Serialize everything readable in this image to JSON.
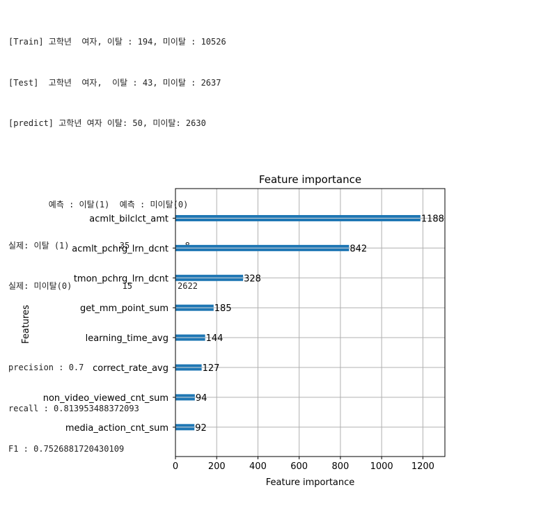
{
  "output_lines": [
    "[Train] 고학년  여자, 이탈 : 194, 미이탈 : 10526",
    "[Test]  고학년  여자,  이탈 : 43, 미이탈 : 2637",
    "[predict] 고학년 여자 이탈: 50, 미이탈: 2630",
    "",
    "        예측 : 이탈(1)  예측 : 미이탈(0)",
    "실제: 이탈 (1)          35           8",
    "실제: 미이탈(0)          15         2622",
    "",
    "precision : 0.7",
    "recall : 0.813953488372093",
    "F1 : 0.7526881720430109"
  ],
  "chart_data": {
    "type": "bar",
    "orientation": "horizontal",
    "title": "Feature importance",
    "xlabel": "Feature importance",
    "ylabel": "Features",
    "categories": [
      "acmlt_bilclct_amt",
      "acmlt_pchrg_lrn_dcnt",
      "tmon_pchrg_lrn_dcnt",
      "get_mm_point_sum",
      "learning_time_avg",
      "correct_rate_avg",
      "non_video_viewed_cnt_sum",
      "media_action_cnt_sum"
    ],
    "values": [
      1188,
      842,
      328,
      185,
      144,
      127,
      94,
      92
    ],
    "value_labels": [
      "1188",
      "842",
      "328",
      "185",
      "144",
      "127",
      "94",
      "92"
    ],
    "xlim": [
      0,
      1306.8
    ],
    "xticks": [
      0,
      200,
      400,
      600,
      800,
      1000,
      1200
    ],
    "xtick_labels": [
      "0",
      "200",
      "400",
      "600",
      "800",
      "1000",
      "1200"
    ],
    "grid": true,
    "bar_color": "#1f77b4"
  }
}
